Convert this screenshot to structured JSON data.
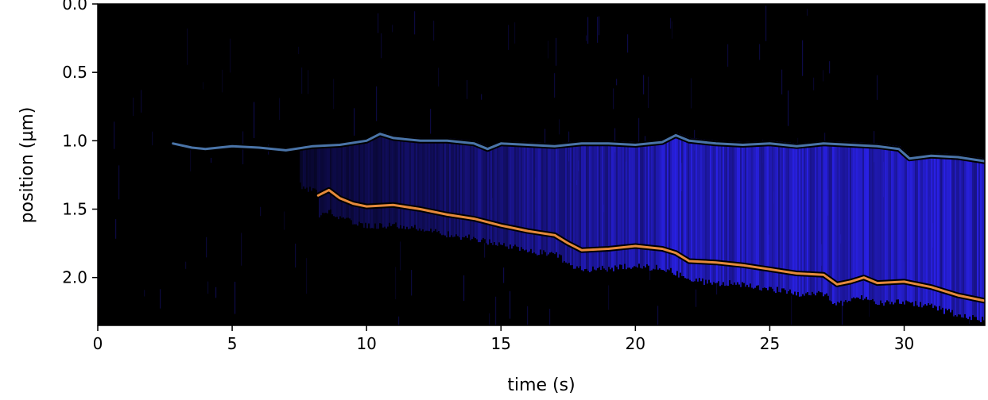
{
  "chart_data": {
    "type": "kymograph",
    "xlabel": "time (s)",
    "ylabel": "position (µm)",
    "xlim": [
      0,
      33
    ],
    "ylim": [
      2.35,
      0.0
    ],
    "y_inverted": true,
    "x_ticks": [
      0,
      5,
      10,
      15,
      20,
      25,
      30
    ],
    "x_tick_labels": [
      "0",
      "5",
      "10",
      "15",
      "20",
      "25",
      "30"
    ],
    "y_ticks": [
      0.0,
      0.5,
      1.0,
      1.5,
      2.0
    ],
    "y_tick_labels": [
      "0.0",
      "0.5",
      "1.0",
      "1.5",
      "2.0"
    ],
    "grid": false,
    "legend": "none",
    "colors": {
      "background": "#000000",
      "signal": "#2b22f0",
      "track_outline": "#000000",
      "series": [
        "#4a74a8",
        "#e58a3c"
      ]
    },
    "series": [
      {
        "x": [
          2.8,
          3.5,
          4.0,
          5.0,
          6.0,
          7.0,
          8.0,
          9.0,
          10.0,
          10.5,
          11.0,
          12.0,
          13.0,
          14.0,
          14.5,
          15.0,
          16.0,
          17.0,
          18.0,
          19.0,
          20.0,
          21.0,
          21.5,
          22.0,
          23.0,
          24.0,
          25.0,
          26.0,
          27.0,
          28.0,
          29.0,
          29.8,
          30.2,
          31.0,
          32.0,
          33.0
        ],
        "y": [
          1.02,
          1.05,
          1.06,
          1.04,
          1.05,
          1.07,
          1.04,
          1.03,
          1.0,
          0.95,
          0.98,
          1.0,
          1.0,
          1.02,
          1.06,
          1.02,
          1.03,
          1.04,
          1.02,
          1.02,
          1.03,
          1.01,
          0.96,
          1.0,
          1.02,
          1.03,
          1.02,
          1.04,
          1.02,
          1.03,
          1.04,
          1.06,
          1.13,
          1.11,
          1.12,
          1.15
        ]
      },
      {
        "x": [
          8.2,
          8.6,
          9.0,
          9.5,
          10.0,
          11.0,
          12.0,
          13.0,
          14.0,
          15.0,
          15.5,
          16.0,
          17.0,
          17.5,
          18.0,
          19.0,
          20.0,
          21.0,
          21.5,
          22.0,
          23.0,
          24.0,
          25.0,
          26.0,
          27.0,
          27.5,
          28.0,
          28.5,
          29.0,
          30.0,
          31.0,
          32.0,
          33.0
        ],
        "y": [
          1.4,
          1.36,
          1.42,
          1.46,
          1.48,
          1.47,
          1.5,
          1.54,
          1.57,
          1.62,
          1.64,
          1.66,
          1.69,
          1.75,
          1.8,
          1.79,
          1.77,
          1.79,
          1.82,
          1.88,
          1.89,
          1.91,
          1.94,
          1.97,
          1.98,
          2.05,
          2.03,
          2.0,
          2.04,
          2.03,
          2.07,
          2.13,
          2.17
        ]
      }
    ]
  }
}
